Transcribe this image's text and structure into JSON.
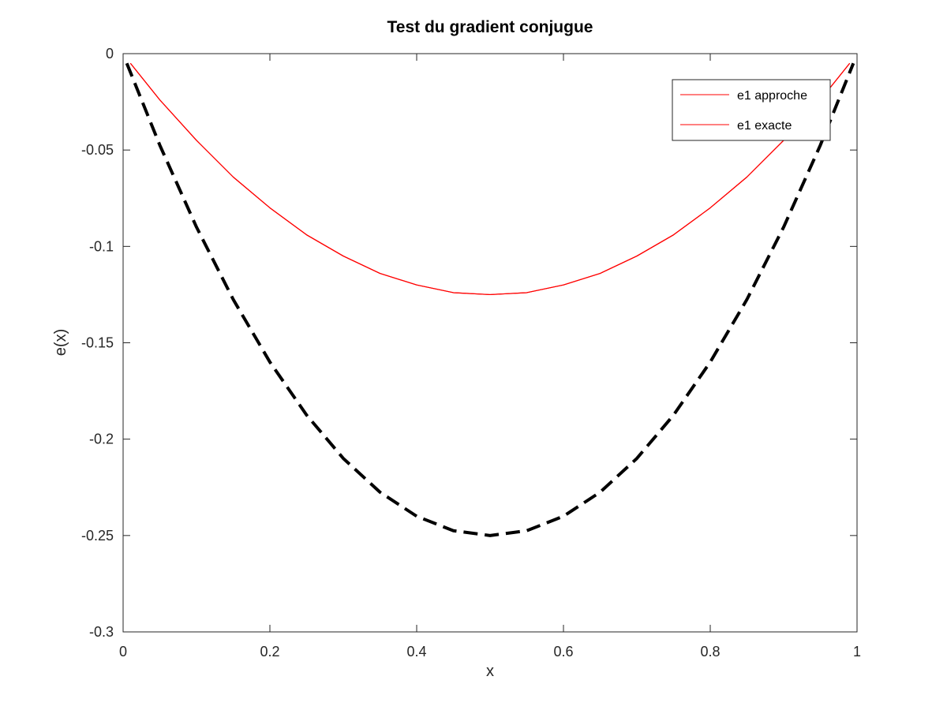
{
  "chart_data": {
    "type": "line",
    "title": "Test du gradient conjugue",
    "xlabel": "x",
    "ylabel": "e(x)",
    "xlim": [
      0,
      1
    ],
    "ylim": [
      -0.3,
      0
    ],
    "x_ticks": [
      0,
      0.2,
      0.4,
      0.6,
      0.8,
      1
    ],
    "x_tick_labels": [
      "0",
      "0.2",
      "0.4",
      "0.6",
      "0.8",
      "1"
    ],
    "y_ticks": [
      0,
      -0.05,
      -0.1,
      -0.15,
      -0.2,
      -0.25,
      -0.3
    ],
    "y_tick_labels": [
      "0",
      "-0.05",
      "-0.1",
      "-0.15",
      "-0.2",
      "-0.25",
      "-0.3"
    ],
    "grid": false,
    "legend_position": "top-right",
    "series": [
      {
        "name": "e1 approche",
        "color": "#ff0000",
        "style": "solid",
        "x": [
          0.01,
          0.05,
          0.1,
          0.15,
          0.2,
          0.25,
          0.3,
          0.35,
          0.4,
          0.45,
          0.5,
          0.55,
          0.6,
          0.65,
          0.7,
          0.75,
          0.8,
          0.85,
          0.9,
          0.95,
          0.99
        ],
        "y": [
          -0.005,
          -0.024,
          -0.045,
          -0.064,
          -0.08,
          -0.094,
          -0.105,
          -0.114,
          -0.12,
          -0.124,
          -0.125,
          -0.124,
          -0.12,
          -0.114,
          -0.105,
          -0.094,
          -0.08,
          -0.064,
          -0.045,
          -0.024,
          -0.005
        ]
      },
      {
        "name": "e1 exacte",
        "color": "#ff0000",
        "style": "solid",
        "x": [
          0.01,
          0.05,
          0.1,
          0.15,
          0.2,
          0.25,
          0.3,
          0.35,
          0.4,
          0.45,
          0.5,
          0.55,
          0.6,
          0.65,
          0.7,
          0.75,
          0.8,
          0.85,
          0.9,
          0.95,
          0.99
        ],
        "y": [
          -0.005,
          -0.024,
          -0.045,
          -0.064,
          -0.08,
          -0.094,
          -0.105,
          -0.114,
          -0.12,
          -0.124,
          -0.125,
          -0.124,
          -0.12,
          -0.114,
          -0.105,
          -0.094,
          -0.08,
          -0.064,
          -0.045,
          -0.024,
          -0.005
        ]
      },
      {
        "color": "#000000",
        "style": "dashed",
        "x": [
          0.005,
          0.05,
          0.1,
          0.15,
          0.2,
          0.25,
          0.3,
          0.35,
          0.4,
          0.45,
          0.5,
          0.55,
          0.6,
          0.65,
          0.7,
          0.75,
          0.8,
          0.85,
          0.9,
          0.95,
          0.995
        ],
        "y": [
          -0.005,
          -0.0475,
          -0.09,
          -0.1275,
          -0.16,
          -0.1875,
          -0.21,
          -0.2275,
          -0.24,
          -0.2475,
          -0.25,
          -0.2475,
          -0.24,
          -0.2275,
          -0.21,
          -0.1875,
          -0.16,
          -0.1275,
          -0.09,
          -0.0475,
          -0.005
        ]
      }
    ]
  }
}
